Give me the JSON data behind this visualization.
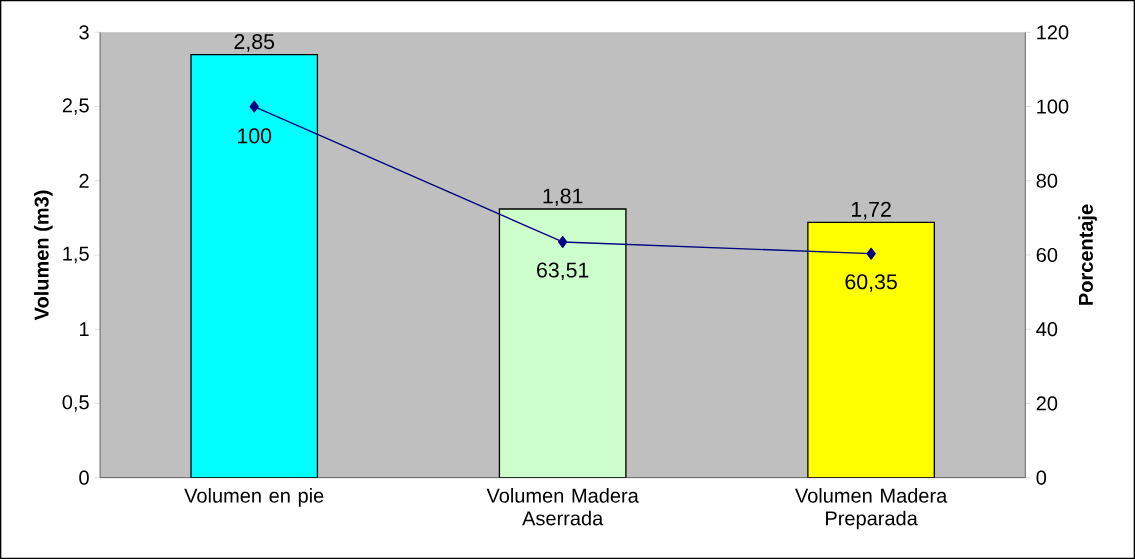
{
  "chart_data": {
    "type": "bar",
    "ylabel": "Volumen (m3)",
    "y2label": "Porcentaje",
    "categories": [
      "Volumen en pie",
      "Volumen Madera Aserrada",
      "Volumen Madera Preparada"
    ],
    "series": [
      {
        "colors": [
          "#00ffff",
          "#ccffcc",
          "#ffff00"
        ],
        "values": [
          2.85,
          1.81,
          1.72
        ],
        "value_labels": [
          "2,85",
          "1,81",
          "1,72"
        ]
      },
      {
        "type": "line",
        "axis": "y2",
        "color": "#000080",
        "marker": "diamond",
        "values": [
          100,
          63.51,
          60.35
        ],
        "value_labels": [
          "100",
          "63,51",
          "60,35"
        ]
      }
    ],
    "ylim": [
      0,
      3
    ],
    "yticks": [
      0,
      {
        "value": 0.5,
        "label": "0,5"
      },
      1,
      {
        "value": 1.5,
        "label": "1,5"
      },
      2,
      {
        "value": 2.5,
        "label": "2,5"
      },
      3
    ],
    "y2lim": [
      0,
      120
    ],
    "y2ticks": [
      0,
      20,
      40,
      60,
      80,
      100,
      120
    ]
  }
}
